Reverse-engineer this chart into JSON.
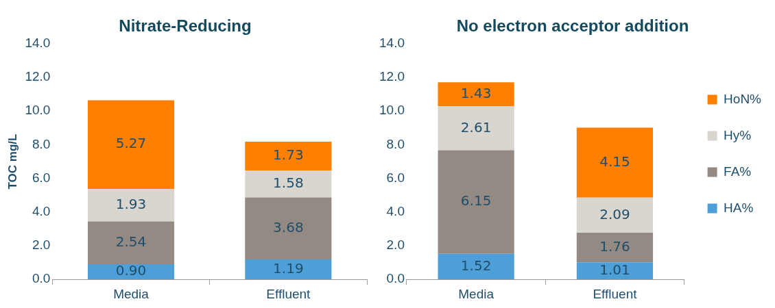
{
  "chart_data": [
    {
      "type": "bar",
      "title": "Nitrate-Reducing",
      "ylabel": "TOC mg/L",
      "categories": [
        "Media",
        "Effluent"
      ],
      "stacked": true,
      "legend": false,
      "grid": false,
      "ylim": [
        0,
        14
      ],
      "yticks": [
        {
          "value": 0,
          "label": "0.0"
        },
        {
          "value": 2,
          "label": "2.0"
        },
        {
          "value": 4,
          "label": "4.0"
        },
        {
          "value": 6,
          "label": "6.0"
        },
        {
          "value": 8,
          "label": "8.0"
        },
        {
          "value": 10,
          "label": "10.0"
        },
        {
          "value": 12,
          "label": "12.0"
        },
        {
          "value": 14,
          "label": "14.0"
        }
      ],
      "series": [
        {
          "color": "#4e9fd8",
          "values": [
            0.9,
            1.19
          ],
          "value_labels": [
            "0.90",
            "1.19"
          ]
        },
        {
          "color": "#938a84",
          "values": [
            2.54,
            3.68
          ],
          "value_labels": [
            "2.54",
            "3.68"
          ]
        },
        {
          "color": "#d9d6d0",
          "values": [
            1.93,
            1.58
          ],
          "value_labels": [
            "1.93",
            "1.58"
          ]
        },
        {
          "color": "#ff7f00",
          "values": [
            5.27,
            1.73
          ],
          "value_labels": [
            "5.27",
            "1.73"
          ]
        }
      ]
    },
    {
      "type": "bar",
      "title": "No electron acceptor addition",
      "categories": [
        "Media",
        "Effluent"
      ],
      "stacked": true,
      "legend": "right",
      "grid": false,
      "ylim": [
        0,
        14
      ],
      "yticks": [
        {
          "value": 0,
          "label": "0.0"
        },
        {
          "value": 2,
          "label": "2.0"
        },
        {
          "value": 4,
          "label": "4.0"
        },
        {
          "value": 6,
          "label": "6.0"
        },
        {
          "value": 8,
          "label": "8.0"
        },
        {
          "value": 10,
          "label": "10.0"
        },
        {
          "value": 12,
          "label": "12.0"
        },
        {
          "value": 14,
          "label": "14.0"
        }
      ],
      "series": [
        {
          "name": "HA%",
          "color": "#4e9fd8",
          "values": [
            1.52,
            1.01
          ],
          "value_labels": [
            "1.52",
            "1.01"
          ]
        },
        {
          "name": "FA%",
          "color": "#938a84",
          "values": [
            6.15,
            1.76
          ],
          "value_labels": [
            "6.15",
            "1.76"
          ]
        },
        {
          "name": "Hy%",
          "color": "#d9d6d0",
          "values": [
            2.61,
            2.09
          ],
          "value_labels": [
            "2.61",
            "2.09"
          ]
        },
        {
          "name": "HoN%",
          "color": "#ff7f00",
          "values": [
            1.43,
            4.15
          ],
          "value_labels": [
            "1.43",
            "4.15"
          ]
        }
      ]
    }
  ]
}
